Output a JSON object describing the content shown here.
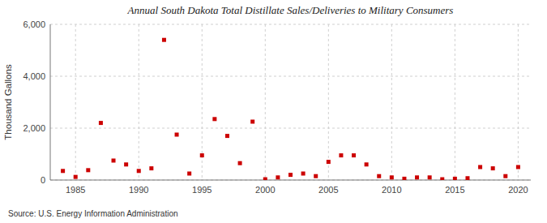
{
  "chart_data": {
    "type": "scatter",
    "title": "Annual South Dakota Total Distillate Sales/Deliveries to Military Consumers",
    "y_label": "Thousand Gallons",
    "annotations": [
      "Source: U.S. Energy Information Administration"
    ],
    "x": [
      1984,
      1985,
      1986,
      1987,
      1988,
      1989,
      1990,
      1991,
      1992,
      1993,
      1994,
      1995,
      1996,
      1997,
      1998,
      1999,
      2000,
      2001,
      2002,
      2003,
      2004,
      2005,
      2006,
      2007,
      2008,
      2009,
      2010,
      2011,
      2012,
      2013,
      2014,
      2015,
      2016,
      2017,
      2018,
      2019,
      2020
    ],
    "values": [
      350,
      120,
      380,
      2200,
      750,
      600,
      350,
      450,
      5400,
      1750,
      250,
      950,
      2350,
      1700,
      650,
      2250,
      30,
      100,
      200,
      250,
      150,
      700,
      950,
      950,
      600,
      150,
      100,
      50,
      100,
      100,
      30,
      50,
      70,
      500,
      450,
      150,
      500
    ],
    "color": "#cc0000",
    "marker": "square",
    "xlim": [
      1983,
      2021
    ],
    "xticks": [
      1985,
      1990,
      1995,
      2000,
      2005,
      2010,
      2015,
      2020
    ],
    "ylim": [
      0,
      6000
    ],
    "yticks": [
      0,
      {
        "value": 2000,
        "label": "2,000"
      },
      {
        "value": 4000,
        "label": "4,000"
      },
      {
        "value": 6000,
        "label": "6,000"
      }
    ],
    "grid": true
  }
}
